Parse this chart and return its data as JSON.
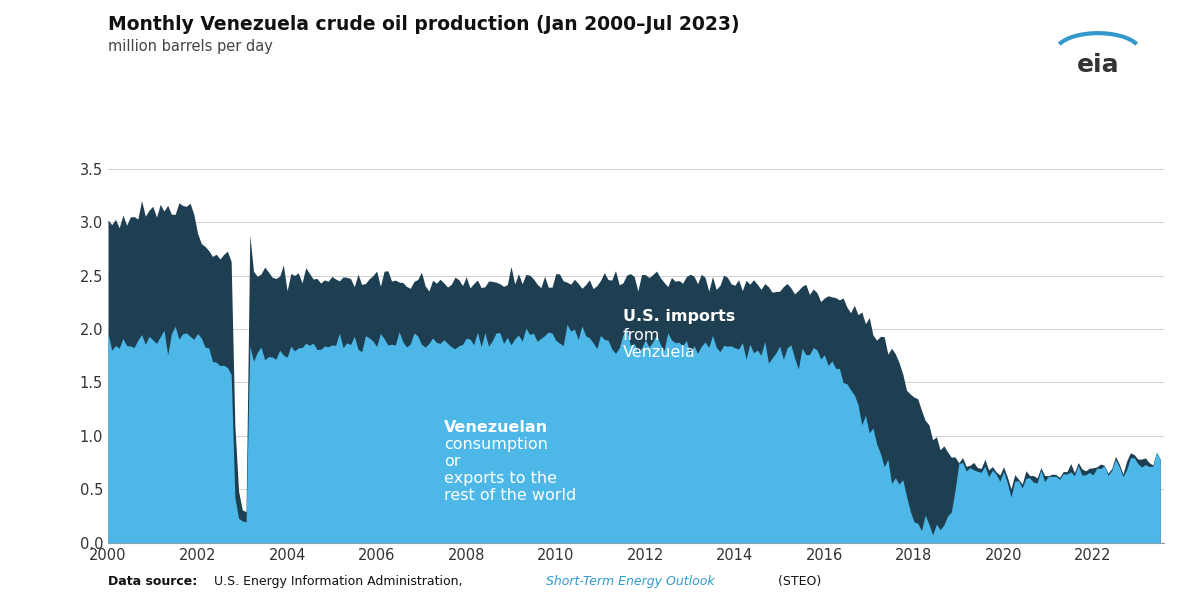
{
  "title": "Monthly Venezuela crude oil production (Jan 2000–Jul 2023)",
  "subtitle": "million barrels per day",
  "ylim": [
    0,
    3.5
  ],
  "yticks": [
    0.0,
    0.5,
    1.0,
    1.5,
    2.0,
    2.5,
    3.0,
    3.5
  ],
  "xticks": [
    2000,
    2002,
    2004,
    2006,
    2008,
    2010,
    2012,
    2014,
    2016,
    2018,
    2020,
    2022
  ],
  "bg_color": "#ffffff",
  "grid_color": "#d0d0d0",
  "color_total": "#1e3f52",
  "color_bottom": "#4db8e8",
  "noise_seed": 12
}
